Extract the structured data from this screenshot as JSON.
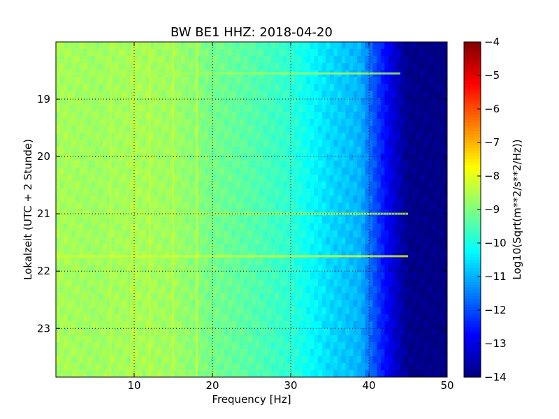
{
  "chart_data": {
    "type": "heatmap",
    "title": "BW BE1 HHZ: 2018-04-20",
    "xlabel": "Frequency [Hz]",
    "ylabel": "Lokalzeit (UTC + 2 Stunde)",
    "xlim": [
      0,
      50
    ],
    "ylim": [
      18.0,
      23.85
    ],
    "y_inverted": true,
    "x_ticks": [
      10,
      20,
      30,
      40,
      50
    ],
    "x_tick_labels": [
      "10",
      "20",
      "30",
      "40",
      "50"
    ],
    "y_ticks": [
      19,
      20,
      21,
      22,
      23
    ],
    "y_tick_labels": [
      "19",
      "20",
      "21",
      "22",
      "23"
    ],
    "grid": true,
    "colormap": "jet",
    "colorbar": {
      "label": "Log10(Sqrt(m**2/s**2/Hz))",
      "range": [
        -14,
        -4
      ],
      "ticks": [
        -4,
        -5,
        -6,
        -7,
        -8,
        -9,
        -10,
        -11,
        -12,
        -13,
        -14
      ],
      "tick_labels": [
        "−4",
        "−5",
        "−6",
        "−7",
        "−8",
        "−9",
        "−10",
        "−11",
        "−12",
        "−13",
        "−14"
      ]
    },
    "spectral_profile": {
      "frequency_hz": [
        0,
        5,
        10,
        15,
        20,
        25,
        30,
        33,
        35,
        37,
        39,
        40,
        41,
        42,
        43,
        44,
        45,
        50
      ],
      "log_amplitude": [
        -8.6,
        -8.7,
        -8.6,
        -8.7,
        -9.1,
        -9.4,
        -9.8,
        -10.3,
        -10.6,
        -10.8,
        -11.0,
        -11.6,
        -12.1,
        -12.6,
        -13.1,
        -13.5,
        -13.9,
        -14.0
      ]
    },
    "band_features": [
      {
        "frequency_hz": 10,
        "log_amplitude": -8.0
      },
      {
        "frequency_hz": 12,
        "log_amplitude": -8.1
      },
      {
        "frequency_hz": 15,
        "log_amplitude": -8.1
      },
      {
        "frequency_hz": 18,
        "log_amplitude": -8.0
      },
      {
        "frequency_hz": 7,
        "log_amplitude": -8.3
      }
    ],
    "time_features": [
      {
        "time_h": 18.55,
        "log_amplitude": -8.6,
        "to_frequency_hz": 44
      },
      {
        "time_h": 21.0,
        "log_amplitude": -8.5,
        "to_frequency_hz": 45
      },
      {
        "time_h": 21.74,
        "log_amplitude": -8.1,
        "to_frequency_hz": 45
      }
    ]
  }
}
